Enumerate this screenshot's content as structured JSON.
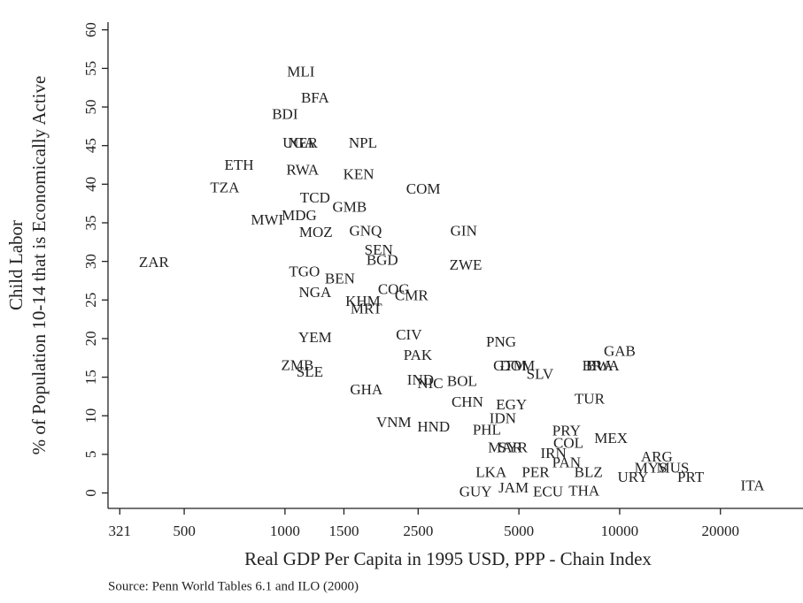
{
  "chart_data": {
    "type": "scatter",
    "y_label_line1": "Child Labor",
    "y_label_line2": "% of Population 10-14 that is Economically Active",
    "x_label": "Real GDP Per Capita in 1995 USD, PPP - Chain Index",
    "source": "Source: Penn World Tables 6.1 and ILO (2000)",
    "x_log": true,
    "xlim": [
      296,
      35300
    ],
    "ylim": [
      -2,
      61
    ],
    "xticks": [
      321,
      500,
      1000,
      1500,
      2500,
      5000,
      10000,
      20000
    ],
    "yticks": [
      0,
      5,
      10,
      15,
      20,
      25,
      30,
      35,
      40,
      45,
      50,
      55,
      60
    ],
    "labels": [
      "MLI",
      "BFA",
      "BDI",
      "UGA",
      "NER",
      "NPL",
      "ETH",
      "RWA",
      "KEN",
      "TZA",
      "COM",
      "TCD",
      "GMB",
      "MDG",
      "MWI",
      "MOZ",
      "GNQ",
      "GIN",
      "SEN",
      "BGD",
      "ZAR",
      "ZWE",
      "TGO",
      "BEN",
      "NGA",
      "COG",
      "CMR",
      "KHM",
      "MRT",
      "YEM",
      "CIV",
      "PAK",
      "PNG",
      "GAB",
      "ZMB",
      "SLE",
      "IND",
      "NIC",
      "BOL",
      "GTM",
      "DOM",
      "SLV",
      "BRA",
      "BWA",
      "GHA",
      "TUR",
      "CHN",
      "EGY",
      "IDN",
      "VNM",
      "HND",
      "PHL",
      "PRY",
      "COL",
      "MEX",
      "MAR",
      "SYR",
      "IRN",
      "ARG",
      "PAN",
      "LKA",
      "PER",
      "BLZ",
      "MYS",
      "MUS",
      "URY",
      "PRT",
      "GUY",
      "JAM",
      "ECU",
      "THA",
      "ITA"
    ],
    "x": [
      1116,
      1230,
      1000,
      1100,
      1130,
      1710,
      729,
      1129,
      1660,
      661,
      2590,
      1230,
      1560,
      1103,
      885,
      1237,
      1741,
      3420,
      1905,
      1953,
      406,
      3467,
      1143,
      1459,
      1230,
      2114,
      2388,
      1710,
      1750,
      1230,
      2346,
      2495,
      4425,
      10000,
      1089,
      1186,
      2540,
      2717,
      3381,
      4700,
      4950,
      5780,
      8600,
      8900,
      1750,
      8130,
      3508,
      4750,
      4475,
      2114,
      2781,
      4010,
      6935,
      7030,
      9420,
      4550,
      4800,
      6340,
      12910,
      6935,
      4130,
      5610,
      8070,
      12390,
      14410,
      10960,
      16300,
      3710,
      4820,
      6110,
      7830,
      24950
    ],
    "y": [
      54.4,
      51.0,
      48.9,
      45.2,
      45.2,
      45.2,
      42.3,
      41.7,
      41.1,
      39.4,
      39.2,
      38.1,
      36.9,
      35.8,
      35.2,
      33.6,
      33.8,
      33.8,
      31.3,
      30.0,
      29.7,
      29.4,
      28.5,
      27.6,
      25.8,
      26.2,
      25.4,
      24.7,
      23.7,
      20.0,
      20.3,
      17.7,
      19.4,
      18.2,
      16.4,
      15.5,
      14.5,
      14.0,
      14.3,
      16.3,
      16.3,
      15.2,
      16.3,
      16.3,
      13.2,
      12.0,
      11.6,
      11.3,
      9.5,
      9.0,
      8.4,
      8.0,
      7.9,
      6.3,
      6.9,
      5.7,
      5.7,
      5.0,
      4.5,
      3.8,
      2.5,
      2.5,
      2.5,
      3.1,
      3.1,
      1.9,
      1.9,
      0,
      0.5,
      0,
      0.1,
      0.8
    ]
  }
}
